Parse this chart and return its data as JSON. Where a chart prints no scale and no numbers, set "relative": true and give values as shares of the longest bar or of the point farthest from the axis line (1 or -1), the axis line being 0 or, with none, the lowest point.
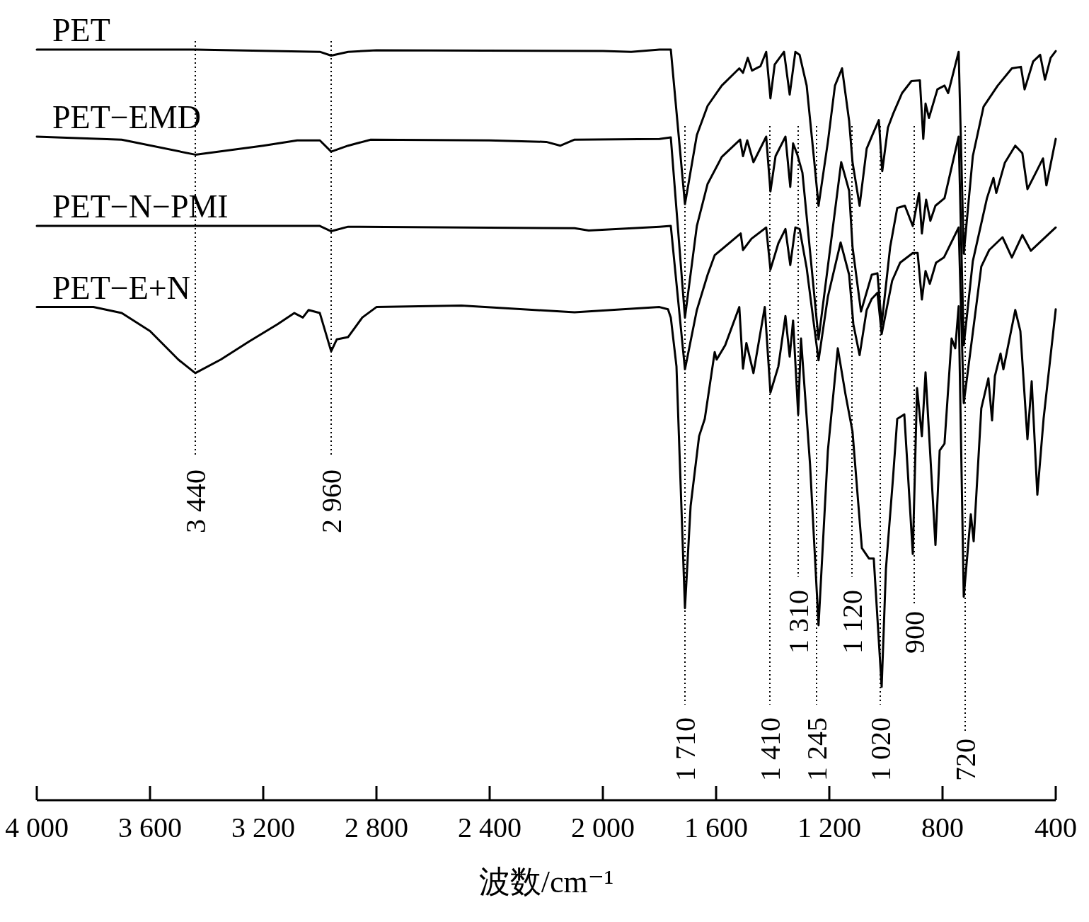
{
  "chart_data": {
    "type": "line",
    "relative": true,
    "xlabel": "波数/cm⁻¹",
    "tick_labels": "x",
    "grid": false,
    "marker": "none",
    "line_style": "solid",
    "xlim": [
      4000,
      400
    ],
    "xticks": [
      {
        "value": 4000,
        "label": "4 000"
      },
      {
        "value": 3600,
        "label": "3 600"
      },
      {
        "value": 3200,
        "label": "3 200"
      },
      {
        "value": 2800,
        "label": "2 800"
      },
      {
        "value": 2400,
        "label": "2 400"
      },
      {
        "value": 2000,
        "label": "2 000"
      },
      {
        "value": 1600,
        "label": "1 600"
      },
      {
        "value": 1200,
        "label": "1 200"
      },
      800,
      400
    ],
    "series": [
      {
        "name": "PET",
        "color": "#000000",
        "x": [
          4000,
          3440,
          3000,
          2960,
          2900,
          2800,
          2000,
          1900,
          1800,
          1760,
          1710,
          1668,
          1630,
          1580,
          1518,
          1505,
          1488,
          1473,
          1443,
          1423,
          1408,
          1393,
          1360,
          1340,
          1320,
          1305,
          1280,
          1255,
          1238,
          1205,
          1180,
          1155,
          1130,
          1118,
          1093,
          1068,
          1048,
          1025,
          1013,
          993,
          975,
          943,
          910,
          880,
          868,
          860,
          848,
          818,
          793,
          780,
          743,
          725,
          693,
          655,
          605,
          555,
          523,
          510,
          480,
          455,
          438,
          418,
          400
        ],
        "values": [
          1.0,
          1.0,
          0.997,
          0.992,
          0.997,
          0.999,
          0.998,
          0.997,
          1.0,
          1.0,
          0.794,
          0.886,
          0.925,
          0.952,
          0.975,
          0.969,
          0.989,
          0.972,
          0.978,
          0.997,
          0.935,
          0.98,
          0.997,
          0.94,
          0.997,
          0.993,
          0.952,
          0.858,
          0.792,
          0.877,
          0.952,
          0.975,
          0.905,
          0.85,
          0.792,
          0.868,
          0.886,
          0.906,
          0.838,
          0.896,
          0.914,
          0.942,
          0.958,
          0.959,
          0.881,
          0.928,
          0.909,
          0.947,
          0.952,
          0.942,
          0.997,
          0.728,
          0.858,
          0.924,
          0.952,
          0.975,
          0.977,
          0.947,
          0.984,
          0.993,
          0.96,
          0.989,
          0.998
        ]
      },
      {
        "name": "PET−EMD",
        "color": "#000000",
        "x": [
          4000,
          3700,
          3440,
          3200,
          3080,
          3000,
          2960,
          2900,
          2820,
          2400,
          2200,
          2150,
          2100,
          1800,
          1760,
          1710,
          1668,
          1630,
          1580,
          1515,
          1505,
          1490,
          1468,
          1423,
          1408,
          1390,
          1355,
          1338,
          1328,
          1313,
          1295,
          1238,
          1158,
          1130,
          1118,
          1088,
          1050,
          1030,
          1015,
          985,
          960,
          933,
          905,
          883,
          873,
          858,
          843,
          825,
          793,
          743,
          725,
          693,
          643,
          620,
          610,
          580,
          543,
          518,
          500,
          465,
          445,
          433,
          400
        ],
        "values": [
          0.884,
          0.88,
          0.86,
          0.872,
          0.879,
          0.879,
          0.864,
          0.872,
          0.88,
          0.879,
          0.877,
          0.872,
          0.88,
          0.881,
          0.883,
          0.643,
          0.765,
          0.821,
          0.857,
          0.88,
          0.858,
          0.879,
          0.85,
          0.884,
          0.811,
          0.858,
          0.884,
          0.817,
          0.875,
          0.86,
          0.836,
          0.614,
          0.85,
          0.812,
          0.737,
          0.651,
          0.7,
          0.702,
          0.634,
          0.737,
          0.789,
          0.792,
          0.765,
          0.809,
          0.755,
          0.8,
          0.772,
          0.792,
          0.802,
          0.884,
          0.606,
          0.718,
          0.802,
          0.829,
          0.809,
          0.849,
          0.872,
          0.862,
          0.814,
          0.84,
          0.855,
          0.819,
          0.881
        ]
      },
      {
        "name": "PET−N−PMI",
        "color": "#000000",
        "x": [
          4000,
          3000,
          2960,
          2900,
          2100,
          2050,
          1800,
          1760,
          1710,
          1668,
          1630,
          1605,
          1513,
          1505,
          1475,
          1423,
          1408,
          1380,
          1355,
          1338,
          1320,
          1305,
          1280,
          1238,
          1205,
          1160,
          1130,
          1115,
          1093,
          1068,
          1050,
          1030,
          1015,
          978,
          950,
          905,
          888,
          873,
          860,
          845,
          823,
          795,
          743,
          725,
          663,
          635,
          588,
          555,
          518,
          488,
          400
        ],
        "values": [
          0.765,
          0.765,
          0.758,
          0.764,
          0.762,
          0.759,
          0.764,
          0.765,
          0.574,
          0.653,
          0.7,
          0.726,
          0.755,
          0.733,
          0.748,
          0.763,
          0.707,
          0.742,
          0.761,
          0.713,
          0.763,
          0.761,
          0.709,
          0.586,
          0.671,
          0.743,
          0.7,
          0.634,
          0.593,
          0.653,
          0.668,
          0.676,
          0.621,
          0.692,
          0.716,
          0.729,
          0.729,
          0.667,
          0.705,
          0.688,
          0.716,
          0.723,
          0.763,
          0.529,
          0.711,
          0.733,
          0.75,
          0.723,
          0.753,
          0.732,
          0.763
        ]
      },
      {
        "name": "PET−E+N",
        "color": "#000000",
        "x": [
          4000,
          3800,
          3700,
          3600,
          3500,
          3440,
          3350,
          3250,
          3150,
          3090,
          3060,
          3040,
          3000,
          2960,
          2940,
          2900,
          2850,
          2800,
          2500,
          2100,
          1800,
          1770,
          1760,
          1740,
          1710,
          1690,
          1660,
          1640,
          1605,
          1598,
          1568,
          1518,
          1505,
          1493,
          1468,
          1428,
          1408,
          1380,
          1355,
          1340,
          1328,
          1310,
          1300,
          1268,
          1238,
          1205,
          1170,
          1143,
          1118,
          1085,
          1060,
          1043,
          1015,
          1000,
          975,
          960,
          935,
          905,
          890,
          873,
          860,
          825,
          810,
          793,
          768,
          755,
          743,
          725,
          700,
          690,
          663,
          638,
          625,
          615,
          595,
          585,
          543,
          525,
          500,
          485,
          465,
          443,
          400
        ],
        "values": [
          0.657,
          0.657,
          0.649,
          0.625,
          0.587,
          0.569,
          0.587,
          0.611,
          0.634,
          0.649,
          0.643,
          0.653,
          0.649,
          0.598,
          0.614,
          0.617,
          0.643,
          0.657,
          0.659,
          0.65,
          0.657,
          0.654,
          0.643,
          0.578,
          0.256,
          0.392,
          0.485,
          0.508,
          0.597,
          0.587,
          0.606,
          0.657,
          0.575,
          0.609,
          0.569,
          0.657,
          0.543,
          0.578,
          0.645,
          0.591,
          0.639,
          0.514,
          0.615,
          0.447,
          0.233,
          0.466,
          0.602,
          0.541,
          0.491,
          0.336,
          0.322,
          0.322,
          0.151,
          0.308,
          0.429,
          0.508,
          0.514,
          0.328,
          0.549,
          0.485,
          0.57,
          0.34,
          0.466,
          0.475,
          0.615,
          0.602,
          0.658,
          0.271,
          0.381,
          0.345,
          0.522,
          0.562,
          0.506,
          0.565,
          0.595,
          0.574,
          0.653,
          0.625,
          0.481,
          0.558,
          0.407,
          0.508,
          0.654
        ]
      }
    ],
    "ref_lines": [
      {
        "axis": "x",
        "value": 3440,
        "label": "3 440",
        "line_style": "dotted"
      },
      {
        "axis": "x",
        "value": 2960,
        "label": "2 960",
        "line_style": "dotted"
      },
      {
        "axis": "x",
        "value": 1710,
        "label": "1 710",
        "line_style": "dotted"
      },
      {
        "axis": "x",
        "value": 1410,
        "label": "1 410",
        "line_style": "dotted"
      },
      {
        "axis": "x",
        "value": 1310,
        "label": "1 310",
        "line_style": "dotted"
      },
      {
        "axis": "x",
        "value": 1245,
        "label": "1 245",
        "line_style": "dotted"
      },
      {
        "axis": "x",
        "value": 1120,
        "label": "1 120",
        "line_style": "dotted"
      },
      {
        "axis": "x",
        "value": 1020,
        "label": "1 020",
        "line_style": "dotted"
      },
      {
        "axis": "x",
        "value": 900,
        "label": "900",
        "line_style": "dotted"
      },
      {
        "axis": "x",
        "value": 720,
        "label": "720",
        "line_style": "dotted"
      }
    ]
  }
}
